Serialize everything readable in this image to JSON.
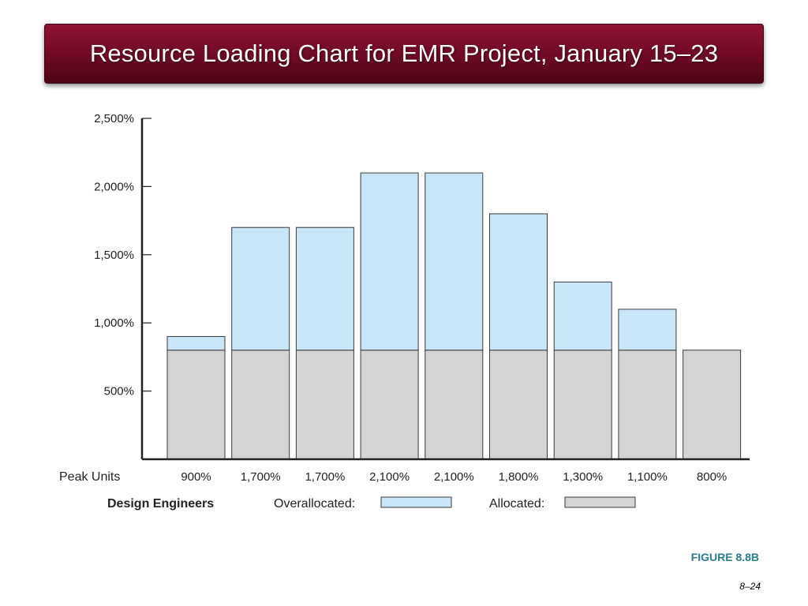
{
  "title": "Resource Loading Chart for EMR Project, January 15–23",
  "figure_label": "FIGURE 8.8B",
  "page_number": "8–24",
  "chart_data": {
    "type": "bar",
    "stacked": true,
    "y_ticks": [
      "500%",
      "1,000%",
      "1,500%",
      "2,000%",
      "2,500%"
    ],
    "ylim": [
      0,
      2500
    ],
    "row_label": "Peak Units",
    "peak_units": [
      "900%",
      "1,700%",
      "1,700%",
      "2,100%",
      "2,100%",
      "1,800%",
      "1,300%",
      "1,100%",
      "800%"
    ],
    "series": [
      {
        "name": "Allocated:",
        "values": [
          800,
          800,
          800,
          800,
          800,
          800,
          800,
          800,
          800
        ],
        "color": "#d4d4d4"
      },
      {
        "name": "Overallocated:",
        "values": [
          100,
          900,
          900,
          1300,
          1300,
          1000,
          500,
          300,
          0
        ],
        "color": "#c7e7f9"
      }
    ],
    "legend": {
      "resource": "Design Engineers",
      "overallocated_label": "Overallocated:",
      "allocated_label": "Allocated:"
    },
    "grid": false
  }
}
